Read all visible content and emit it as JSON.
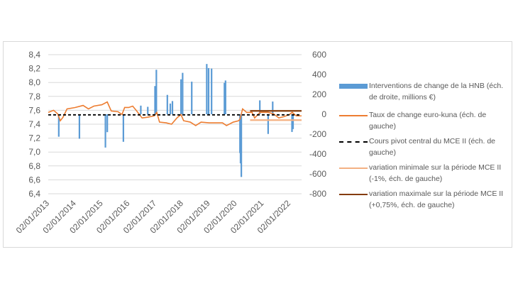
{
  "chart_data": {
    "type": "bar+line",
    "title": "",
    "x_tick_labels": [
      "02/01/2013",
      "02/01/2014",
      "02/01/2015",
      "02/01/2016",
      "02/01/2017",
      "02/01/2018",
      "02/01/2019",
      "02/01/2020",
      "02/01/2021",
      "02/01/2022"
    ],
    "x_range": [
      2013,
      2022.45
    ],
    "left_axis": {
      "range": [
        6.4,
        8.4
      ],
      "ticks": [
        "6,4",
        "6,6",
        "6,8",
        "7,0",
        "7,2",
        "7,4",
        "7,6",
        "7,8",
        "8,0",
        "8,2",
        "8,4"
      ]
    },
    "right_axis": {
      "range": [
        -800,
        600
      ],
      "ticks": [
        "-800",
        "-600",
        "-400",
        "-200",
        "0",
        "200",
        "400",
        "600"
      ]
    },
    "grid": true,
    "legend_position": "right",
    "series": [
      {
        "name": "Interventions de change de la HNB (éch. de droite, millions €)",
        "type": "bar",
        "axis": "right",
        "color": "#5b9bd5",
        "points": [
          [
            2013.39,
            -226
          ],
          [
            2014.16,
            -246
          ],
          [
            2015.13,
            -335
          ],
          [
            2015.2,
            -180
          ],
          [
            2015.8,
            -277
          ],
          [
            2016.45,
            87
          ],
          [
            2016.71,
            75
          ],
          [
            2016.98,
            284
          ],
          [
            2017.03,
            448
          ],
          [
            2017.44,
            195
          ],
          [
            2017.55,
            108
          ],
          [
            2017.63,
            133
          ],
          [
            2017.95,
            352
          ],
          [
            2018.01,
            417
          ],
          [
            2018.35,
            328
          ],
          [
            2018.91,
            506
          ],
          [
            2018.98,
            465
          ],
          [
            2019.09,
            460
          ],
          [
            2019.57,
            316
          ],
          [
            2019.61,
            340
          ],
          [
            2020.15,
            -390
          ],
          [
            2020.17,
            -494
          ],
          [
            2020.2,
            -631
          ],
          [
            2020.89,
            140
          ],
          [
            2021.2,
            -198
          ],
          [
            2021.37,
            128
          ],
          [
            2022.09,
            -178
          ],
          [
            2022.13,
            -149
          ]
        ]
      },
      {
        "name": "Taux de change euro-kuna (éch. de gauche)",
        "type": "line",
        "axis": "left",
        "color": "#ed7d31",
        "points": [
          [
            2013.0,
            7.57
          ],
          [
            2013.2,
            7.6
          ],
          [
            2013.35,
            7.55
          ],
          [
            2013.45,
            7.45
          ],
          [
            2013.55,
            7.5
          ],
          [
            2013.7,
            7.62
          ],
          [
            2014.0,
            7.64
          ],
          [
            2014.3,
            7.67
          ],
          [
            2014.5,
            7.62
          ],
          [
            2014.7,
            7.66
          ],
          [
            2015.0,
            7.68
          ],
          [
            2015.2,
            7.72
          ],
          [
            2015.35,
            7.59
          ],
          [
            2015.6,
            7.58
          ],
          [
            2015.75,
            7.54
          ],
          [
            2015.85,
            7.64
          ],
          [
            2016.0,
            7.64
          ],
          [
            2016.15,
            7.66
          ],
          [
            2016.3,
            7.59
          ],
          [
            2016.5,
            7.49
          ],
          [
            2016.7,
            7.5
          ],
          [
            2016.95,
            7.52
          ],
          [
            2017.05,
            7.57
          ],
          [
            2017.15,
            7.43
          ],
          [
            2017.4,
            7.42
          ],
          [
            2017.6,
            7.4
          ],
          [
            2017.8,
            7.49
          ],
          [
            2017.95,
            7.54
          ],
          [
            2018.05,
            7.45
          ],
          [
            2018.3,
            7.43
          ],
          [
            2018.5,
            7.38
          ],
          [
            2018.7,
            7.43
          ],
          [
            2019.0,
            7.42
          ],
          [
            2019.3,
            7.42
          ],
          [
            2019.5,
            7.42
          ],
          [
            2019.65,
            7.38
          ],
          [
            2019.9,
            7.43
          ],
          [
            2020.1,
            7.45
          ],
          [
            2020.15,
            7.47
          ],
          [
            2020.25,
            7.62
          ],
          [
            2020.4,
            7.57
          ],
          [
            2020.6,
            7.57
          ],
          [
            2020.7,
            7.49
          ],
          [
            2020.9,
            7.57
          ],
          [
            2021.2,
            7.57
          ],
          [
            2021.4,
            7.55
          ],
          [
            2021.6,
            7.49
          ],
          [
            2021.8,
            7.51
          ],
          [
            2022.0,
            7.54
          ],
          [
            2022.1,
            7.57
          ],
          [
            2022.25,
            7.52
          ],
          [
            2022.45,
            7.52
          ]
        ]
      },
      {
        "name": "Cours pivot central du MCE II (éch. de gauche)",
        "type": "dashed-line",
        "axis": "left",
        "color": "#000000",
        "value": 7.5345,
        "from": 2013.0,
        "to": 2022.45
      },
      {
        "name": "variation minimale sur la période MCE II (-1%, éch. de gauche)",
        "type": "line",
        "axis": "left",
        "color": "#f4b183",
        "value": 7.459,
        "from": 2020.53,
        "to": 2022.45
      },
      {
        "name": "variation maximale sur la période MCE II (+0,75%, éch. de gauche)",
        "type": "line",
        "axis": "left",
        "color": "#843c0c",
        "value": 7.591,
        "from": 2020.53,
        "to": 2022.45
      }
    ]
  }
}
